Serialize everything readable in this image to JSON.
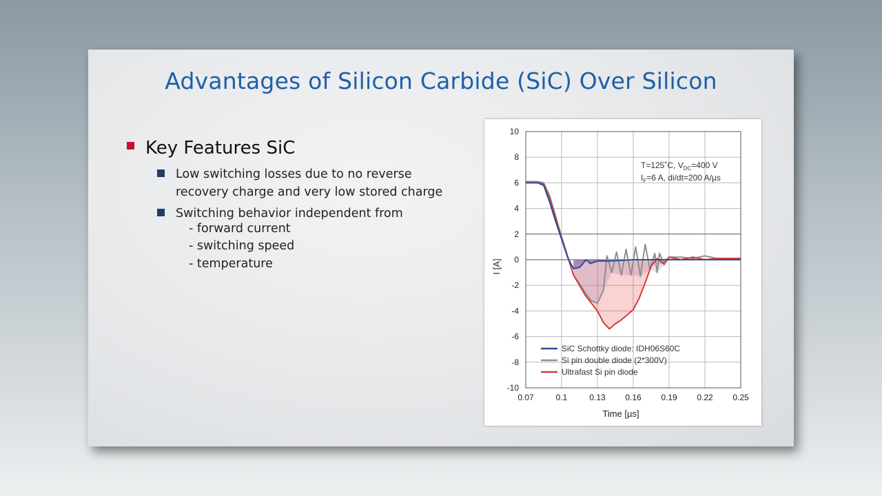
{
  "slide": {
    "title": "Advantages of Silicon Carbide (SiC)  Over Silicon",
    "bullet": "Key Features SiC",
    "points": [
      {
        "lines": [
          "Low switching losses due to no reverse",
          "recovery charge and very low stored charge"
        ]
      },
      {
        "lines": [
          "Switching behavior independent from"
        ]
      }
    ],
    "subpoints": [
      "- forward current",
      "- switching speed",
      "- temperature"
    ]
  },
  "colors": {
    "title": "#1f5fa8",
    "bullet_red": "#c8102e",
    "bullet_blue": "#1f3f66",
    "sic": "#2a4f9a",
    "si_double": "#8e8e8e",
    "ultrafast": "#d43a3a"
  },
  "chart_data": {
    "type": "line",
    "xlabel": "Time  [µs]",
    "ylabel": "I  [A]",
    "xlim": [
      0.07,
      0.25
    ],
    "ylim": [
      -10,
      10
    ],
    "x_ticks": [
      "0.07",
      "0.1",
      "0.13",
      "0.16",
      "0.19",
      "0.22",
      "0.25"
    ],
    "y_ticks": [
      "10",
      "8",
      "6",
      "4",
      "2",
      "0",
      "-2",
      "-4",
      "-6",
      "-8",
      "-10"
    ],
    "grid": true,
    "legend_position": "bottom-left",
    "annotation_line1": {
      "pre": "T=125˚C, V",
      "sub": "DC",
      "post": "=400 V"
    },
    "annotation_line2": {
      "pre": "I",
      "sub": "F",
      "post": "=6 A, di/dt=200 A/µs"
    },
    "series": [
      {
        "name": "SiC Schottky diode: IDH06S60C",
        "color": "#2a4f9a",
        "x": [
          0.07,
          0.08,
          0.085,
          0.09,
          0.095,
          0.1,
          0.105,
          0.11,
          0.115,
          0.118,
          0.12,
          0.122,
          0.124,
          0.127,
          0.13,
          0.14,
          0.16,
          0.18,
          0.2,
          0.22,
          0.25
        ],
        "y": [
          6.0,
          6.0,
          5.8,
          4.5,
          3.0,
          1.6,
          0.2,
          -0.7,
          -0.6,
          -0.3,
          0.0,
          -0.1,
          -0.3,
          -0.2,
          -0.1,
          -0.1,
          0.0,
          0.0,
          0.0,
          0.0,
          0.0
        ]
      },
      {
        "name": "Si pin double diode (2*300V)",
        "color": "#8e8e8e",
        "x": [
          0.07,
          0.08,
          0.085,
          0.09,
          0.1,
          0.11,
          0.12,
          0.125,
          0.13,
          0.135,
          0.138,
          0.142,
          0.146,
          0.15,
          0.154,
          0.158,
          0.162,
          0.166,
          0.17,
          0.174,
          0.178,
          0.18,
          0.182,
          0.186,
          0.19,
          0.2,
          0.21,
          0.22,
          0.23,
          0.25
        ],
        "y": [
          6.1,
          6.1,
          6.0,
          5.0,
          1.8,
          -1.2,
          -2.6,
          -3.2,
          -3.4,
          -2.4,
          0.3,
          -1.0,
          0.6,
          -1.2,
          0.8,
          -1.2,
          1.0,
          -1.3,
          1.2,
          -0.8,
          0.5,
          -1.0,
          0.5,
          -0.4,
          0.2,
          0.2,
          0.1,
          0.3,
          0.1,
          0.1
        ]
      },
      {
        "name": "Ultrafast Si pin diode",
        "color": "#d43a3a",
        "x": [
          0.07,
          0.08,
          0.085,
          0.09,
          0.1,
          0.11,
          0.12,
          0.13,
          0.135,
          0.14,
          0.145,
          0.15,
          0.155,
          0.16,
          0.165,
          0.17,
          0.175,
          0.18,
          0.185,
          0.19,
          0.2,
          0.21,
          0.22,
          0.23,
          0.25
        ],
        "y": [
          6.0,
          6.0,
          5.9,
          4.8,
          1.7,
          -1.2,
          -2.8,
          -4.0,
          -4.9,
          -5.4,
          -5.0,
          -4.7,
          -4.3,
          -3.9,
          -3.0,
          -1.8,
          -0.5,
          0.1,
          -0.3,
          0.2,
          0.0,
          0.2,
          0.0,
          0.1,
          0.1
        ]
      }
    ]
  }
}
